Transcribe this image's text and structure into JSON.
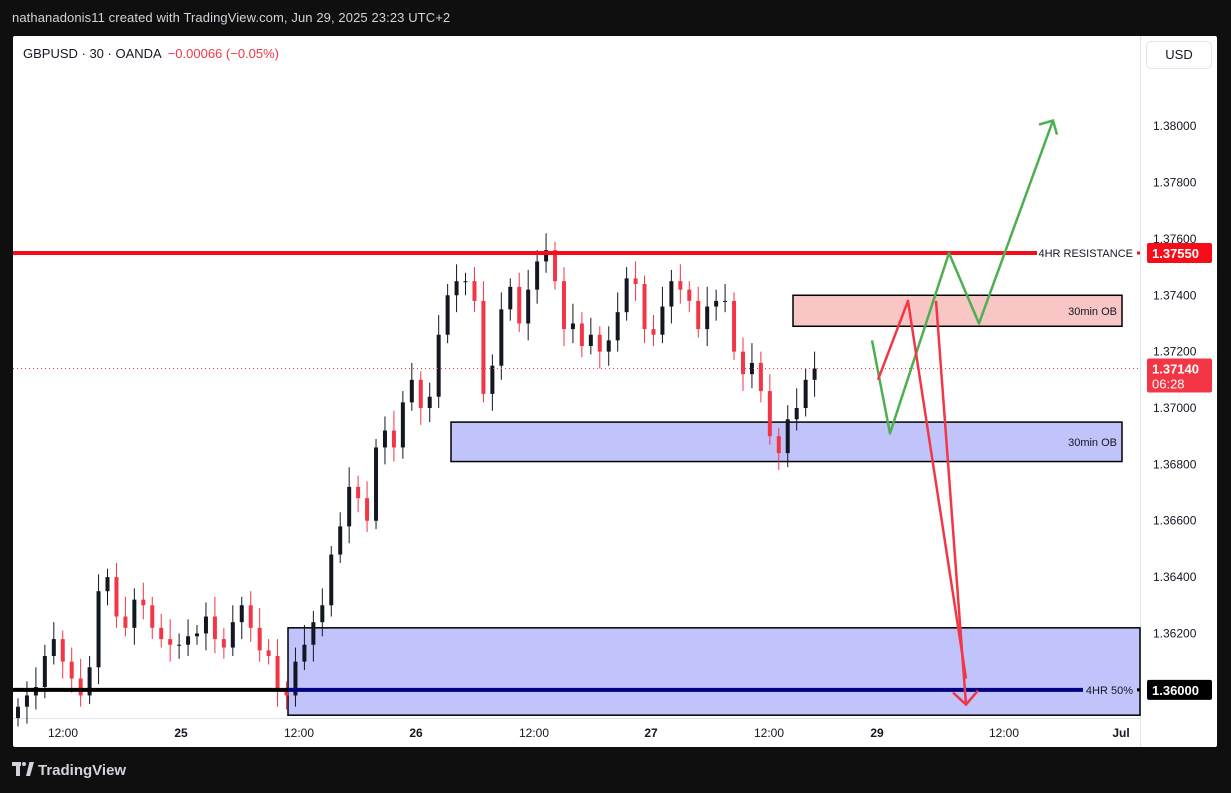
{
  "header": {
    "caption": "nathanadonis11 created with TradingView.com, Jun 29, 2025 23:23 UTC+2"
  },
  "legend": {
    "symbol": "GBPUSD · 30 · OANDA",
    "change": "−0.00066 (−0.05%)"
  },
  "currency_button": "USD",
  "footer": {
    "brand": "TradingView"
  },
  "colors": {
    "up": "#089981",
    "down": "#f23645",
    "candle_body": "#131722",
    "resistance": "#f70d1a",
    "support_line": "#000000",
    "ob_bear_fill": "#f9c6c6",
    "ob_bull_fill": "#c0c4fb",
    "projection_bull": "#4caf50",
    "projection_bear": "#f23645",
    "price_tag": "#f23645"
  },
  "chart_data": {
    "type": "candlestick",
    "symbol": "GBPUSD",
    "interval": "30",
    "source": "OANDA",
    "ylim": [
      1.359,
      1.3832
    ],
    "y_ticks": [
      "1.38000",
      "1.37800",
      "1.37600",
      "1.37400",
      "1.37200",
      "1.37000",
      "1.36800",
      "1.36600",
      "1.36400",
      "1.36200"
    ],
    "x_ticks": [
      "12:00",
      "25",
      "12:00",
      "26",
      "12:00",
      "27",
      "12:00",
      "29",
      "12:00",
      "Jul"
    ],
    "last_price": "1.37140",
    "countdown": "06:28",
    "closes_approx": [
      1.3594,
      1.3598,
      1.3601,
      1.3612,
      1.3618,
      1.361,
      1.3604,
      1.3598,
      1.3608,
      1.3635,
      1.364,
      1.3626,
      1.3622,
      1.3632,
      1.363,
      1.3622,
      1.3618,
      1.3616,
      1.3616,
      1.3619,
      1.362,
      1.3626,
      1.3618,
      1.3615,
      1.3624,
      1.363,
      1.3622,
      1.3614,
      1.3612,
      1.36,
      1.3598,
      1.361,
      1.3616,
      1.3624,
      1.363,
      1.3648,
      1.3658,
      1.3672,
      1.3668,
      1.366,
      1.3686,
      1.3692,
      1.3686,
      1.3702,
      1.371,
      1.37,
      1.3704,
      1.3726,
      1.374,
      1.3745,
      1.3745,
      1.3738,
      1.3705,
      1.3715,
      1.3735,
      1.3743,
      1.373,
      1.3742,
      1.3752,
      1.3756,
      1.3745,
      1.3728,
      1.373,
      1.3722,
      1.3726,
      1.372,
      1.3724,
      1.3734,
      1.3746,
      1.3744,
      1.3728,
      1.3726,
      1.3736,
      1.3745,
      1.3742,
      1.3738,
      1.3728,
      1.3736,
      1.3738,
      1.3738,
      1.372,
      1.3712,
      1.3716,
      1.3706,
      1.369,
      1.3684,
      1.3696,
      1.37,
      1.371,
      1.3714
    ],
    "annotations": {
      "resistance": {
        "price": 1.3755,
        "label": "4HR RESISTANCE",
        "price_label": "1.37550"
      },
      "fifty_percent": {
        "price": 1.36,
        "label": "4HR 50%",
        "price_label": "1.36000"
      },
      "bearish_ob": {
        "label": "30min OB",
        "top": 1.374,
        "bottom": 1.3729
      },
      "bullish_ob_upper": {
        "label": "30min OB",
        "top": 1.3695,
        "bottom": 1.3681
      },
      "bullish_zone_4h": {
        "top": 1.3622,
        "bottom": 1.3591
      },
      "bull_path": [
        1.3724,
        1.3691,
        1.3755,
        1.373,
        1.3802
      ],
      "bear_path": [
        1.371,
        1.3738,
        1.3604
      ]
    }
  }
}
